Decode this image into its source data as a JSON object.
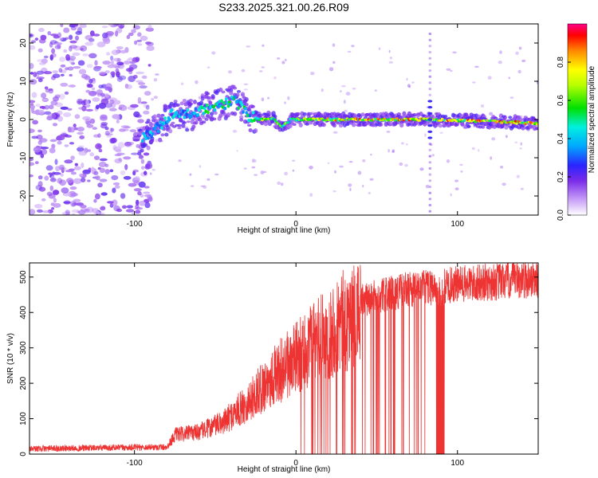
{
  "title": "S233.2025.321.00.26.R09",
  "chart_data": [
    {
      "type": "heatmap",
      "name": "spectrogram",
      "xlabel": "Height of straight line (km)",
      "ylabel": "Frequency (Hz)",
      "xlim": [
        -165,
        150
      ],
      "ylim": [
        -25,
        25
      ],
      "xticks": [
        -100,
        0,
        100
      ],
      "yticks": [
        -20,
        -10,
        0,
        10,
        20
      ],
      "colorbar": {
        "label": "Normalized spectral amplitude",
        "range": [
          0.0,
          1.0
        ],
        "ticks": [
          0.0,
          0.2,
          0.4,
          0.6,
          0.8
        ]
      },
      "ridge": {
        "description_points": [
          {
            "x": -95,
            "y": -5
          },
          {
            "x": -85,
            "y": -2
          },
          {
            "x": -75,
            "y": 2
          },
          {
            "x": -65,
            "y": 1
          },
          {
            "x": -55,
            "y": 3
          },
          {
            "x": -45,
            "y": 4
          },
          {
            "x": -37,
            "y": 5
          },
          {
            "x": -30,
            "y": 1
          },
          {
            "x": -22,
            "y": 0
          },
          {
            "x": -15,
            "y": 0.5
          },
          {
            "x": -9,
            "y": -2
          },
          {
            "x": -3,
            "y": 0
          },
          {
            "x": 5,
            "y": 0
          },
          {
            "x": 40,
            "y": 0
          },
          {
            "x": 84,
            "y": 0
          },
          {
            "x": 120,
            "y": -0.5
          },
          {
            "x": 150,
            "y": -1
          }
        ],
        "vertical_artifact_x": 83
      }
    },
    {
      "type": "line",
      "name": "snr",
      "xlabel": "Height of straight line (km)",
      "ylabel": "SNR (10 * v/v)",
      "xlim": [
        -165,
        150
      ],
      "ylim": [
        0,
        540
      ],
      "xticks": [
        -100,
        0,
        100
      ],
      "yticks": [
        0,
        100,
        200,
        300,
        400,
        500
      ],
      "color": "#ee3333",
      "envelope_points": [
        {
          "x": -165,
          "y": 15
        },
        {
          "x": -80,
          "y": 20
        },
        {
          "x": -75,
          "y": 60
        },
        {
          "x": -60,
          "y": 70
        },
        {
          "x": -45,
          "y": 100
        },
        {
          "x": -30,
          "y": 160
        },
        {
          "x": -15,
          "y": 240
        },
        {
          "x": 0,
          "y": 300
        },
        {
          "x": 15,
          "y": 360
        },
        {
          "x": 30,
          "y": 420
        },
        {
          "x": 50,
          "y": 450
        },
        {
          "x": 70,
          "y": 470
        },
        {
          "x": 90,
          "y": 480
        },
        {
          "x": 120,
          "y": 490
        },
        {
          "x": 150,
          "y": 500
        }
      ]
    }
  ]
}
